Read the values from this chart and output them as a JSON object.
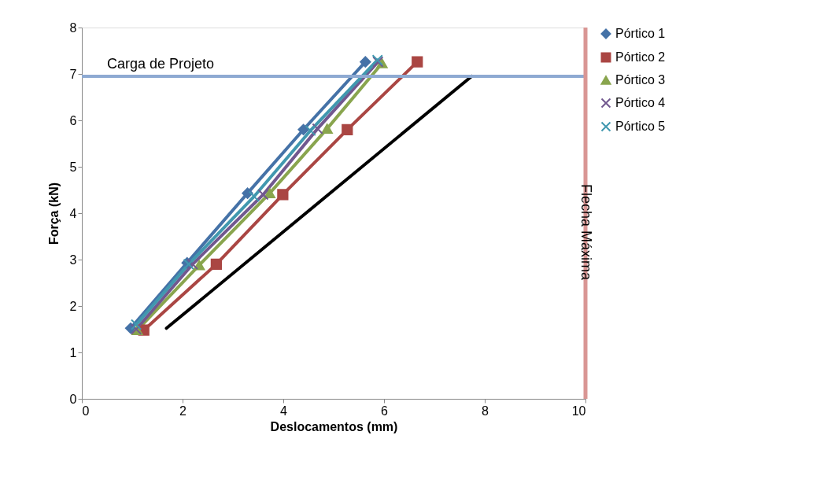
{
  "chart_data": {
    "type": "line",
    "xlabel": "Deslocamentos (mm)",
    "ylabel": "Força (kN)",
    "xlim": [
      0,
      10
    ],
    "ylim": [
      0,
      8
    ],
    "xticks": [
      0,
      2,
      4,
      6,
      8,
      10
    ],
    "yticks": [
      0,
      1,
      2,
      3,
      4,
      5,
      6,
      7,
      8
    ],
    "grid": false,
    "legend": "right",
    "series": [
      {
        "name": "Pórtico 1",
        "color": "#4572a7",
        "marker": "diamond",
        "x": [
          0.97,
          2.09,
          3.29,
          4.4,
          5.63
        ],
        "values": [
          1.52,
          2.93,
          4.43,
          5.8,
          7.26
        ]
      },
      {
        "name": "Pórtico 2",
        "color": "#aa4643",
        "marker": "square",
        "x": [
          1.23,
          2.67,
          3.99,
          5.27,
          6.66
        ],
        "values": [
          1.48,
          2.9,
          4.4,
          5.8,
          7.26
        ]
      },
      {
        "name": "Pórtico 3",
        "color": "#89a54e",
        "marker": "triangle",
        "x": [
          1.1,
          2.33,
          3.73,
          4.87,
          5.96
        ],
        "values": [
          1.48,
          2.88,
          4.43,
          5.82,
          7.23
        ]
      },
      {
        "name": "Pórtico 4",
        "color": "#71588f",
        "marker": "cross",
        "x": [
          1.08,
          2.2,
          3.6,
          4.68,
          5.88
        ],
        "values": [
          1.5,
          2.9,
          4.4,
          5.82,
          7.26
        ]
      },
      {
        "name": "Pórtico 5",
        "color": "#4198af",
        "marker": "cross",
        "x": [
          1.08,
          2.12,
          3.42,
          4.54,
          5.87
        ],
        "values": [
          1.6,
          2.9,
          4.36,
          5.78,
          7.3
        ]
      },
      {
        "color": "#000000",
        "marker": "none",
        "x": [
          1.68,
          7.74
        ],
        "values": [
          1.52,
          6.95
        ]
      }
    ],
    "ref_lines": [
      {
        "axis": "y",
        "value": 6.95,
        "label": "Carga de Projeto",
        "color": "#8eaad2"
      },
      {
        "axis": "x",
        "value": 10,
        "label": "Flecha Máxima",
        "color": "#d99694"
      }
    ]
  }
}
